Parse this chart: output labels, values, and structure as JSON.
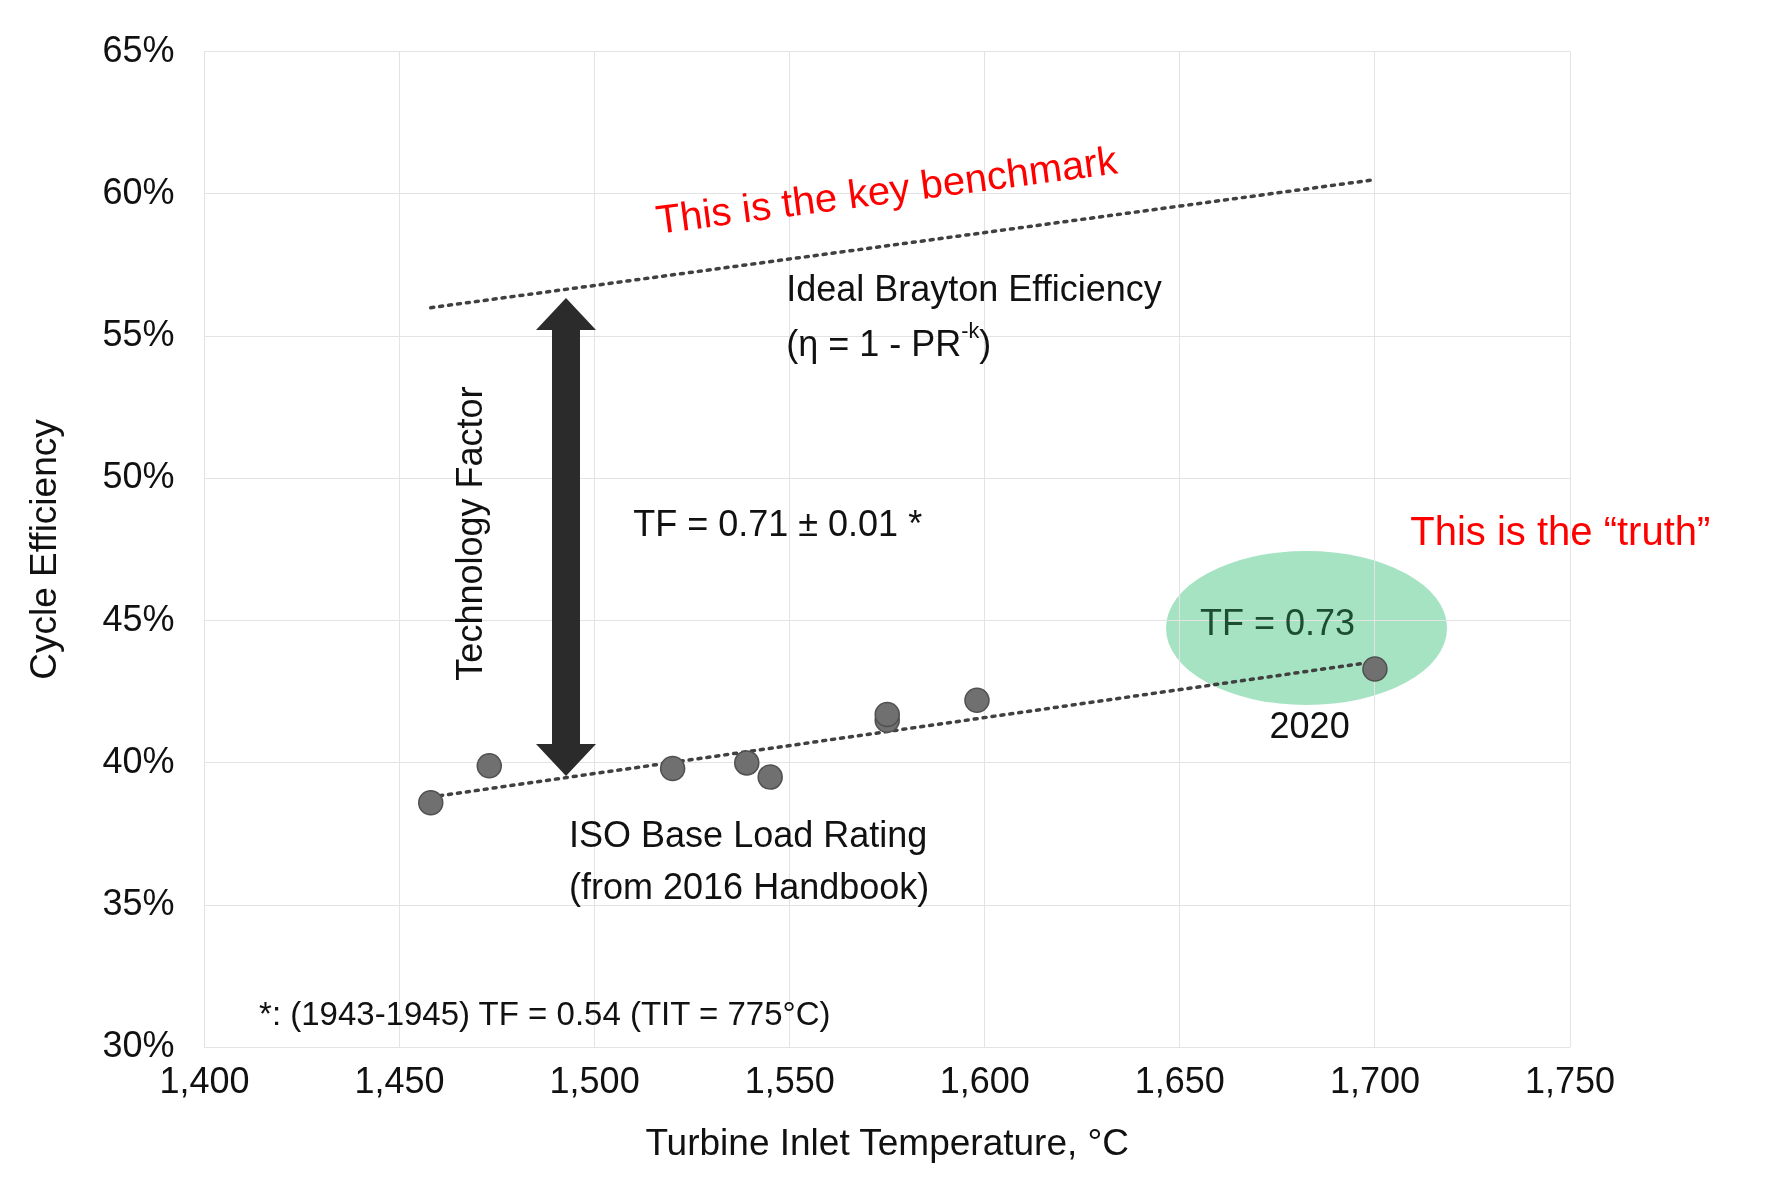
{
  "chart_data": {
    "type": "scatter",
    "xlabel": "Turbine Inlet Temperature, °C",
    "ylabel": "Cycle Efficiency",
    "xlim": [
      1400,
      1750
    ],
    "xticks": [
      {
        "value": 1400,
        "label": "1,400"
      },
      {
        "value": 1450,
        "label": "1,450"
      },
      {
        "value": 1500,
        "label": "1,500"
      },
      {
        "value": 1550,
        "label": "1,550"
      },
      {
        "value": 1600,
        "label": "1,600"
      },
      {
        "value": 1650,
        "label": "1,650"
      },
      {
        "value": 1700,
        "label": "1,700"
      },
      {
        "value": 1750,
        "label": "1,750"
      }
    ],
    "ylim": [
      30,
      65
    ],
    "yticks": [
      {
        "value": 30,
        "label": "30%"
      },
      {
        "value": 35,
        "label": "35%"
      },
      {
        "value": 40,
        "label": "40%"
      },
      {
        "value": 45,
        "label": "45%"
      },
      {
        "value": 50,
        "label": "50%"
      },
      {
        "value": 55,
        "label": "55%"
      },
      {
        "value": 60,
        "label": "60%"
      },
      {
        "value": 65,
        "label": "65%"
      }
    ],
    "grid": true,
    "legend": false,
    "series": [
      {
        "type": "scatter",
        "color": "#707070",
        "marker": "circle",
        "x": [
          1458,
          1473,
          1520,
          1539,
          1545,
          1575,
          1575,
          1598,
          1700
        ],
        "values": [
          38.6,
          39.9,
          39.8,
          40.0,
          39.5,
          41.5,
          41.7,
          42.2,
          43.3
        ]
      },
      {
        "type": "line",
        "color": "#404040",
        "marker": "none",
        "line_style": "dotted",
        "x": [
          1458,
          1700
        ],
        "values": [
          56.0,
          60.5
        ]
      },
      {
        "type": "line",
        "color": "#404040",
        "marker": "none",
        "line_style": "dotted",
        "x": [
          1458,
          1697
        ],
        "values": [
          38.8,
          43.5
        ]
      }
    ],
    "annotations": [
      "This is the key benchmark",
      "Ideal Brayton Efficiency",
      "(η = 1 - PR$^{-k}$)",
      "Technology Factor",
      "TF = 0.71 ± 0.01 *",
      "This is the “truth”",
      "TF = 0.73",
      "2020",
      "ISO Base Load Rating",
      "(from 2016 Handbook)",
      "*: (1943-1945) TF = 0.54 (TIT = 775°C)"
    ]
  }
}
